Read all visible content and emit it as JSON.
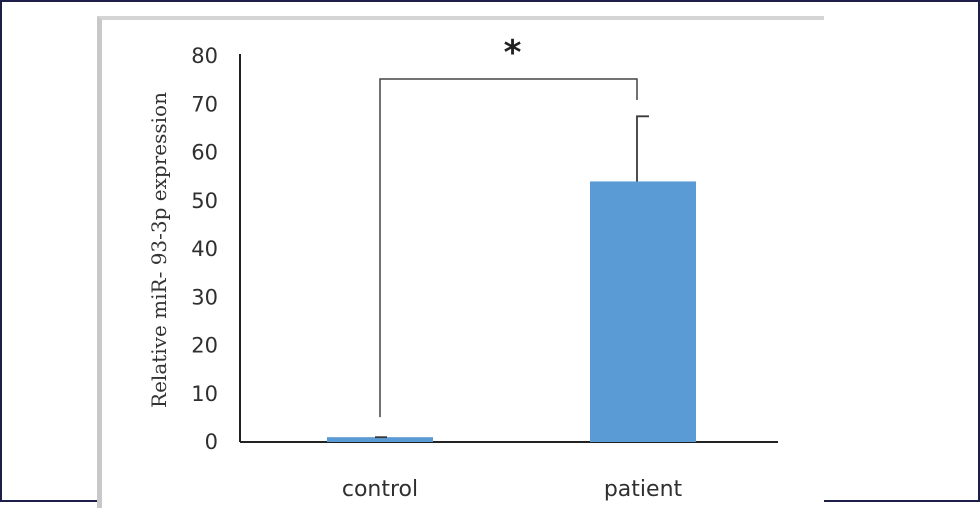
{
  "chart_data": {
    "type": "bar",
    "categories": [
      "control",
      "patient"
    ],
    "values": [
      1,
      54
    ],
    "errors": [
      0,
      13.5
    ],
    "ylabel": "Relative miR- 93-3p expression",
    "xlabel": "",
    "ylim": [
      0,
      80
    ],
    "yticks": [
      0,
      10,
      20,
      30,
      40,
      50,
      60,
      70,
      80
    ],
    "grid": false,
    "significance": {
      "label": "*",
      "between": [
        "control",
        "patient"
      ]
    },
    "colors": {
      "bar": "#5b9bd5",
      "axis": "#222222",
      "frame": "#1e1e4a"
    }
  }
}
